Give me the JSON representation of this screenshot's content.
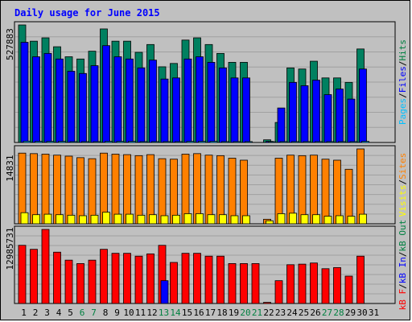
{
  "chart_data": [
    {
      "type": "bar",
      "panel": "top",
      "title": "Daily usage for June 2015",
      "ymax_label": "527883",
      "ylim": [
        0,
        527883
      ],
      "legend": [
        {
          "text": "Pages",
          "color": "#00c0ff"
        },
        {
          "text": "/",
          "color": "#000000"
        },
        {
          "text": "Files",
          "color": "#0000ff"
        },
        {
          "text": "/",
          "color": "#000000"
        },
        {
          "text": "Hits",
          "color": "#008040"
        }
      ],
      "categories": [
        "1",
        "2",
        "3",
        "4",
        "5",
        "6",
        "7",
        "8",
        "9",
        "10",
        "11",
        "12",
        "13",
        "14",
        "15",
        "16",
        "17",
        "18",
        "19",
        "20",
        "21",
        "22",
        "23",
        "24",
        "25",
        "26",
        "27",
        "28",
        "29",
        "30",
        "31"
      ],
      "weekend_days": [
        "6",
        "7",
        "13",
        "14",
        "20",
        "21",
        "27",
        "28"
      ],
      "series": [
        {
          "name": "Hits",
          "color": "#008060",
          "values": [
            527883,
            455000,
            470000,
            430000,
            385000,
            375000,
            410000,
            510000,
            455000,
            455000,
            405000,
            440000,
            340000,
            355000,
            460000,
            470000,
            440000,
            400000,
            360000,
            360000,
            0,
            12000,
            90000,
            335000,
            330000,
            365000,
            290000,
            290000,
            270000,
            420000,
            0
          ]
        },
        {
          "name": "Files",
          "color": "#0000ff",
          "values": [
            450000,
            385000,
            400000,
            375000,
            320000,
            310000,
            345000,
            435000,
            385000,
            375000,
            335000,
            370000,
            285000,
            290000,
            375000,
            385000,
            360000,
            335000,
            290000,
            290000,
            0,
            5000,
            155000,
            270000,
            255000,
            280000,
            215000,
            240000,
            195000,
            330000,
            0
          ]
        },
        {
          "name": "Pages",
          "color": "#00c0ff",
          "values": [
            6000,
            5000,
            5000,
            5000,
            4000,
            4000,
            4000,
            5000,
            5000,
            5000,
            4000,
            4000,
            4000,
            4000,
            5000,
            5000,
            5000,
            4000,
            4000,
            4000,
            0,
            2000,
            4000,
            4000,
            4000,
            4000,
            4000,
            4000,
            4000,
            5000,
            0
          ]
        }
      ]
    },
    {
      "type": "bar",
      "panel": "middle",
      "ymax_label": "14831",
      "ylim": [
        0,
        14831
      ],
      "legend": [
        {
          "text": "Visits",
          "color": "#ffff00"
        },
        {
          "text": "/",
          "color": "#000000"
        },
        {
          "text": "Sites",
          "color": "#ff8000"
        }
      ],
      "series": [
        {
          "name": "Sites",
          "color": "#ff8000",
          "values": [
            14000,
            13900,
            13800,
            13600,
            13400,
            13100,
            12900,
            14000,
            13800,
            13700,
            13500,
            13700,
            12900,
            12800,
            13800,
            13900,
            13600,
            13500,
            13000,
            12600,
            0,
            900,
            13000,
            13600,
            13500,
            13600,
            12800,
            12600,
            10800,
            14831,
            0
          ]
        },
        {
          "name": "Visits",
          "color": "#ffff00",
          "values": [
            2200,
            1800,
            1900,
            1800,
            1700,
            1600,
            1700,
            2300,
            1900,
            1900,
            1700,
            1800,
            1600,
            1700,
            2000,
            2000,
            1800,
            1800,
            1600,
            1600,
            0,
            600,
            2000,
            2100,
            1800,
            1800,
            1500,
            1600,
            1500,
            1900,
            0
          ]
        }
      ]
    },
    {
      "type": "bar",
      "panel": "bottom",
      "ymax_label": "12985731",
      "ylim": [
        0,
        12985731
      ],
      "legend": [
        {
          "text": "KBytes F",
          "short": "kB F",
          "color": "#ff0000"
        },
        {
          "text": "/",
          "color": "#000000"
        },
        {
          "text": "KB In",
          "short": "kB In",
          "color": "#0000ff"
        },
        {
          "text": "/",
          "color": "#000000"
        },
        {
          "text": "KB Out",
          "short": "kB Out",
          "color": "#008040"
        }
      ],
      "series": [
        {
          "name": "KBytes F",
          "color": "#ff0000",
          "values": [
            10200000,
            9500000,
            12985731,
            9000000,
            7600000,
            7000000,
            7600000,
            9500000,
            8800000,
            8800000,
            8300000,
            8700000,
            10200000,
            7200000,
            8800000,
            8800000,
            8300000,
            8300000,
            7000000,
            7000000,
            7000000,
            200000,
            4000000,
            6800000,
            6900000,
            7100000,
            6100000,
            6300000,
            4800000,
            8300000,
            0
          ]
        },
        {
          "name": "KB In",
          "color": "#0000ff",
          "values": [
            0,
            0,
            0,
            0,
            0,
            0,
            0,
            0,
            0,
            0,
            0,
            0,
            4000000,
            0,
            0,
            0,
            0,
            0,
            0,
            0,
            0,
            0,
            0,
            0,
            0,
            0,
            0,
            0,
            0,
            0,
            0
          ]
        }
      ]
    }
  ]
}
